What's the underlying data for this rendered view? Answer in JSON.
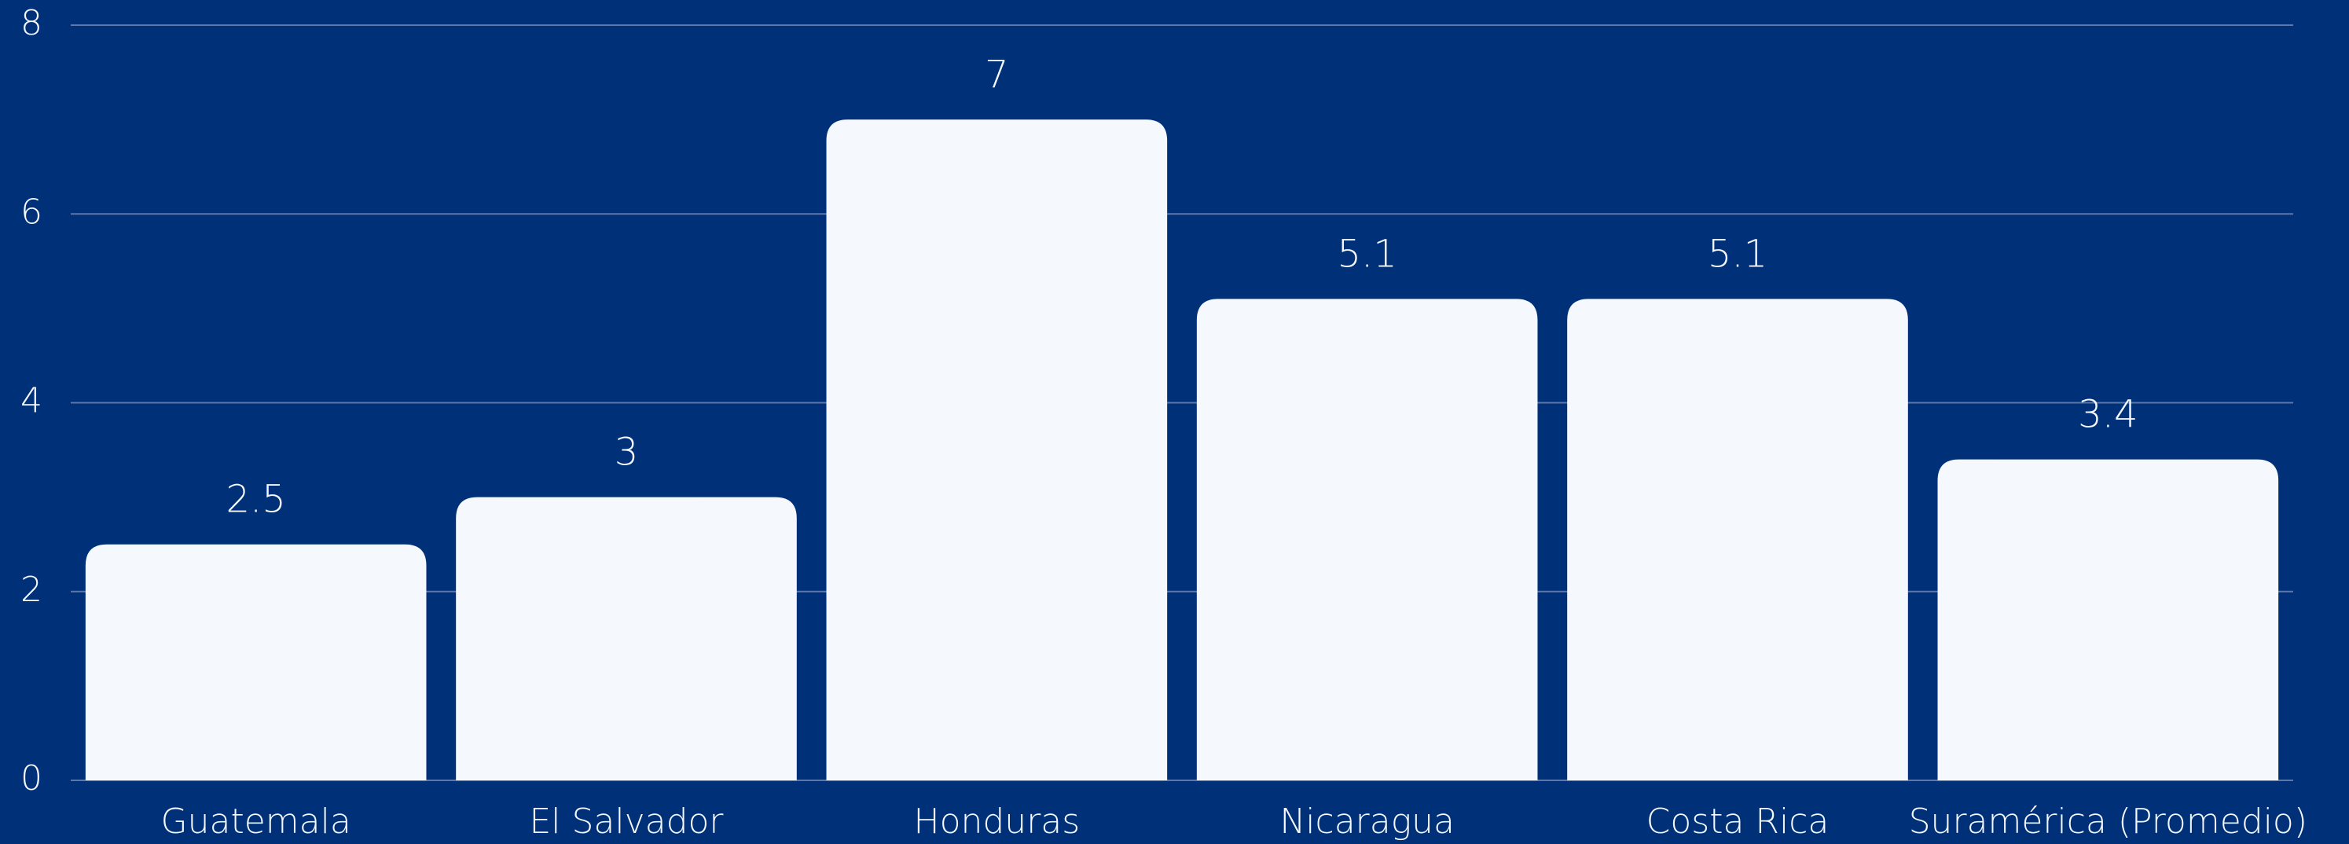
{
  "chart_data": {
    "type": "bar",
    "categories": [
      "Guatemala",
      "El Salvador",
      "Honduras",
      "Nicaragua",
      "Costa Rica",
      "Suramérica (Promedio)"
    ],
    "values": [
      2.5,
      3,
      7,
      5.1,
      5.1,
      3.4
    ],
    "color": "#f5f9fd",
    "ylim": [
      0,
      8
    ],
    "yticks": [
      0,
      2,
      4,
      6,
      8
    ],
    "grid": true
  }
}
